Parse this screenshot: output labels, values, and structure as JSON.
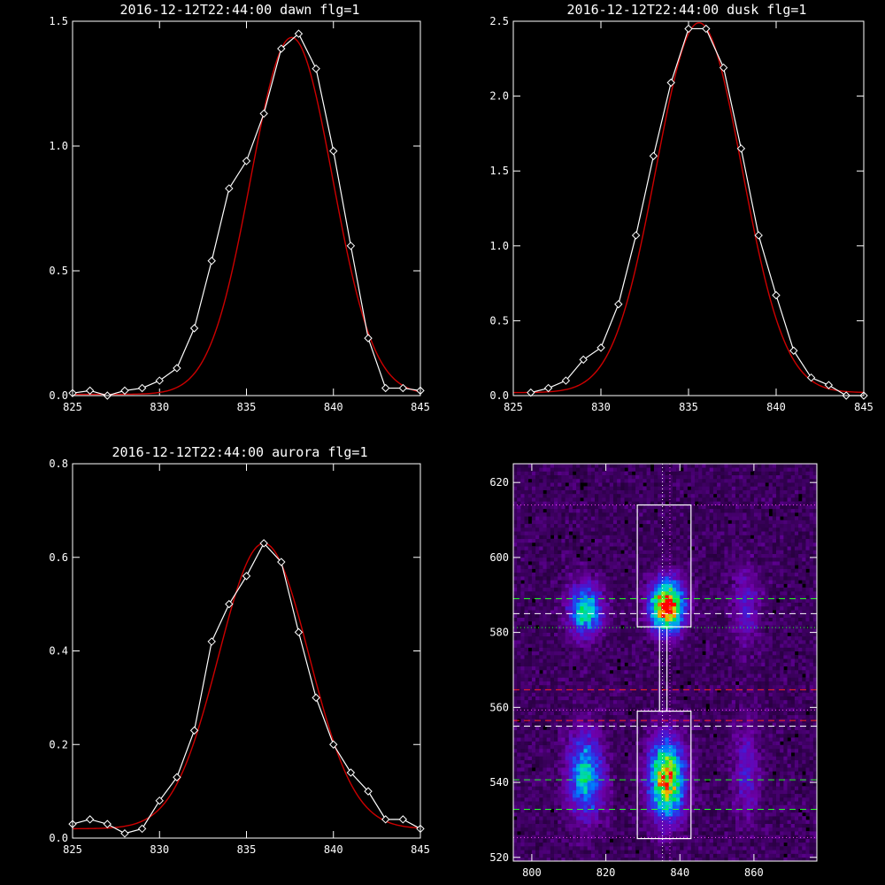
{
  "chart_data": [
    {
      "type": "line",
      "title": "2016-12-12T22:44:00 dawn flg=1",
      "xlim": [
        825,
        845
      ],
      "ylim": [
        0,
        1.5
      ],
      "xticks": [
        "825",
        "830",
        "835",
        "840",
        "845"
      ],
      "yticks": [
        "0.0",
        "0.5",
        "1.0",
        "1.5"
      ],
      "series": [
        {
          "color": "#ffffff",
          "markers": "diamond",
          "x": [
            825,
            826,
            827,
            828,
            829,
            830,
            831,
            832,
            833,
            834,
            835,
            836,
            837,
            838,
            839,
            840,
            841,
            842,
            843,
            844,
            845
          ],
          "y": [
            0.01,
            0.02,
            0.0,
            0.02,
            0.03,
            0.06,
            0.11,
            0.27,
            0.54,
            0.83,
            0.94,
            1.13,
            1.39,
            1.45,
            1.31,
            0.98,
            0.6,
            0.23,
            0.03,
            0.03,
            0.02
          ]
        },
        {
          "color": "#cc0000",
          "fit": "gaussian",
          "amplitude": 1.43,
          "center": 837.6,
          "sigma": 2.35,
          "offset": 0.005
        }
      ]
    },
    {
      "type": "line",
      "title": "2016-12-12T22:44:00 dusk flg=1",
      "xlim": [
        825,
        845
      ],
      "ylim": [
        0,
        2.5
      ],
      "xticks": [
        "825",
        "830",
        "835",
        "840",
        "845"
      ],
      "yticks": [
        "0.0",
        "0.5",
        "1.0",
        "1.5",
        "2.0",
        "2.5"
      ],
      "series": [
        {
          "color": "#ffffff",
          "markers": "diamond",
          "x": [
            826,
            827,
            828,
            829,
            830,
            831,
            832,
            833,
            834,
            835,
            836,
            837,
            838,
            839,
            840,
            841,
            842,
            843,
            844,
            845
          ],
          "y": [
            0.02,
            0.05,
            0.1,
            0.24,
            0.32,
            0.61,
            1.07,
            1.6,
            2.09,
            2.45,
            2.45,
            2.19,
            1.65,
            1.07,
            0.67,
            0.3,
            0.12,
            0.07,
            0.0,
            0.0
          ]
        },
        {
          "color": "#cc0000",
          "fit": "gaussian",
          "amplitude": 2.47,
          "center": 835.6,
          "sigma": 2.45,
          "offset": 0.02
        }
      ]
    },
    {
      "type": "line",
      "title": "2016-12-12T22:44:00 aurora flg=1",
      "xlim": [
        825,
        845
      ],
      "ylim": [
        0,
        0.8
      ],
      "xticks": [
        "825",
        "830",
        "835",
        "840",
        "845"
      ],
      "yticks": [
        "0.0",
        "0.2",
        "0.4",
        "0.6",
        "0.8"
      ],
      "series": [
        {
          "color": "#ffffff",
          "markers": "diamond",
          "x": [
            825,
            826,
            827,
            828,
            829,
            830,
            831,
            832,
            833,
            834,
            835,
            836,
            837,
            838,
            839,
            840,
            841,
            842,
            843,
            844,
            845
          ],
          "y": [
            0.03,
            0.04,
            0.03,
            0.01,
            0.02,
            0.08,
            0.13,
            0.23,
            0.42,
            0.5,
            0.56,
            0.63,
            0.59,
            0.44,
            0.3,
            0.2,
            0.14,
            0.1,
            0.04,
            0.04,
            0.02
          ]
        },
        {
          "color": "#cc0000",
          "fit": "gaussian",
          "amplitude": 0.61,
          "center": 836.0,
          "sigma": 2.6,
          "offset": 0.02
        }
      ]
    },
    {
      "type": "heatmap",
      "title": "",
      "xlim": [
        795,
        877
      ],
      "ylim": [
        519,
        625
      ],
      "xticks": [
        "800",
        "820",
        "840",
        "860"
      ],
      "yticks": [
        "520",
        "540",
        "560",
        "580",
        "600",
        "620"
      ],
      "colormap": "rainbow",
      "blobs": [
        {
          "x": 836.5,
          "y": 587,
          "sx": 3.0,
          "sy": 4.5,
          "peak": 1.0
        },
        {
          "x": 836.5,
          "y": 541,
          "sx": 3.2,
          "sy": 7.0,
          "peak": 0.82
        },
        {
          "x": 814.5,
          "y": 586,
          "sx": 3.0,
          "sy": 4.5,
          "peak": 0.55
        },
        {
          "x": 814.5,
          "y": 542,
          "sx": 3.2,
          "sy": 7.5,
          "peak": 0.5
        },
        {
          "x": 858.0,
          "y": 587,
          "sx": 2.5,
          "sy": 7.0,
          "peak": 0.2
        },
        {
          "x": 858.0,
          "y": 543,
          "sx": 2.5,
          "sy": 9.0,
          "peak": 0.18
        }
      ],
      "boxes": [
        {
          "x0": 828.5,
          "x1": 843.0,
          "y0": 581.5,
          "y1": 614
        },
        {
          "x0": 828.5,
          "x1": 843.0,
          "y0": 525,
          "y1": 559
        }
      ],
      "connector": {
        "x0": 834.5,
        "x1": 836.5,
        "y0": 559,
        "y1": 581.5
      },
      "vlines": [
        {
          "x": 835.3,
          "color": "#ffffff"
        },
        {
          "x": 837.3,
          "color": "#ff44ff"
        }
      ],
      "hlines": [
        {
          "y": 614,
          "color": "#ff44ff",
          "style": "dotted"
        },
        {
          "y": 589,
          "color": "#22ff22",
          "style": "dashed"
        },
        {
          "y": 585,
          "color": "#ffffff",
          "style": "dashed"
        },
        {
          "y": 581.3,
          "color": "#22ff22",
          "style": "dotted"
        },
        {
          "y": 564.7,
          "color": "#ff2222",
          "style": "dashed"
        },
        {
          "y": 559.3,
          "color": "#ff44ff",
          "style": "dotted"
        },
        {
          "y": 556.5,
          "color": "#ff2222",
          "style": "dashed"
        },
        {
          "y": 555,
          "color": "#ffffff",
          "style": "dashed"
        },
        {
          "y": 540.7,
          "color": "#22ff22",
          "style": "dashed"
        },
        {
          "y": 532.8,
          "color": "#22ff22",
          "style": "dashed"
        },
        {
          "y": 525.3,
          "color": "#ff44ff",
          "style": "dotted"
        }
      ]
    }
  ]
}
